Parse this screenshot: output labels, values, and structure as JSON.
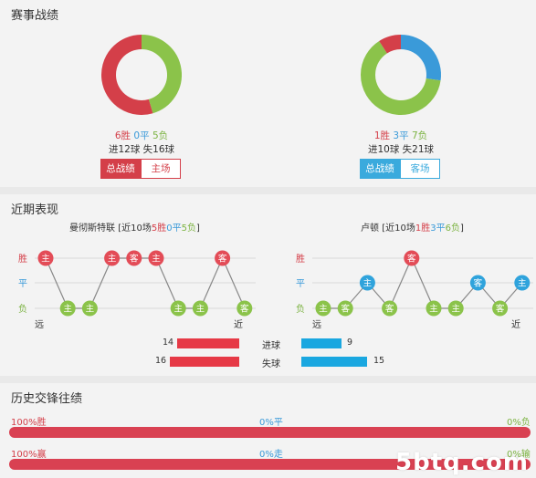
{
  "section1": {
    "title": "赛事战绩",
    "left": {
      "donut": {
        "win": 6,
        "draw": 0,
        "loss": 5
      },
      "record": {
        "win": "6胜",
        "draw": "0平",
        "loss": "5负"
      },
      "goals": "进12球 失16球",
      "buttons": [
        {
          "label": "总战绩",
          "active": true
        },
        {
          "label": "主场",
          "active": false
        }
      ]
    },
    "right": {
      "donut": {
        "win": 1,
        "draw": 3,
        "loss": 7
      },
      "record": {
        "win": "1胜",
        "draw": "3平",
        "loss": "7负"
      },
      "goals": "进10球 失21球",
      "buttons": [
        {
          "label": "总战绩",
          "active": true
        },
        {
          "label": "客场",
          "active": false
        }
      ]
    }
  },
  "section2": {
    "title": "近期表现",
    "left": {
      "team": "曼彻斯特联",
      "summary_prefix": "[近10场",
      "summary_win": "5胜",
      "summary_draw": "0平",
      "summary_loss": "5负",
      "summary_suffix": "]",
      "matches": [
        {
          "result": "W",
          "venue": "主"
        },
        {
          "result": "L",
          "venue": "主"
        },
        {
          "result": "L",
          "venue": "主"
        },
        {
          "result": "W",
          "venue": "主"
        },
        {
          "result": "W",
          "venue": "客"
        },
        {
          "result": "W",
          "venue": "主"
        },
        {
          "result": "L",
          "venue": "主"
        },
        {
          "result": "L",
          "venue": "主"
        },
        {
          "result": "W",
          "venue": "客"
        },
        {
          "result": "L",
          "venue": "客"
        }
      ]
    },
    "right": {
      "team": "卢顿",
      "summary_prefix": "[近10场",
      "summary_win": "1胜",
      "summary_draw": "3平",
      "summary_loss": "6负",
      "summary_suffix": "]",
      "matches": [
        {
          "result": "L",
          "venue": "主"
        },
        {
          "result": "L",
          "venue": "客"
        },
        {
          "result": "D",
          "venue": "主"
        },
        {
          "result": "L",
          "venue": "客"
        },
        {
          "result": "W",
          "venue": "客"
        },
        {
          "result": "L",
          "venue": "主"
        },
        {
          "result": "L",
          "venue": "主"
        },
        {
          "result": "D",
          "venue": "客"
        },
        {
          "result": "L",
          "venue": "客"
        },
        {
          "result": "D",
          "venue": "主"
        }
      ]
    },
    "axis": {
      "win": "胜",
      "draw": "平",
      "loss": "负",
      "far": "远",
      "near": "近"
    },
    "compare": [
      {
        "label": "进球",
        "left": 14,
        "right": 9
      },
      {
        "label": "失球",
        "left": 16,
        "right": 15
      }
    ]
  },
  "section3": {
    "title": "历史交锋往绩",
    "rows": [
      {
        "left": "100%胜",
        "mid": "0%平",
        "right": "0%负",
        "fill": 1.0
      },
      {
        "left": "100%赢",
        "mid": "0%走",
        "right": "0%输",
        "fill": 1.0
      }
    ]
  },
  "watermark": "5btq.com",
  "colors": {
    "red": "#d43f49",
    "blue": "#3a9ad9",
    "green": "#8bc34a",
    "bar_blue": "#1aa7e0",
    "bar_red": "#e63946"
  }
}
